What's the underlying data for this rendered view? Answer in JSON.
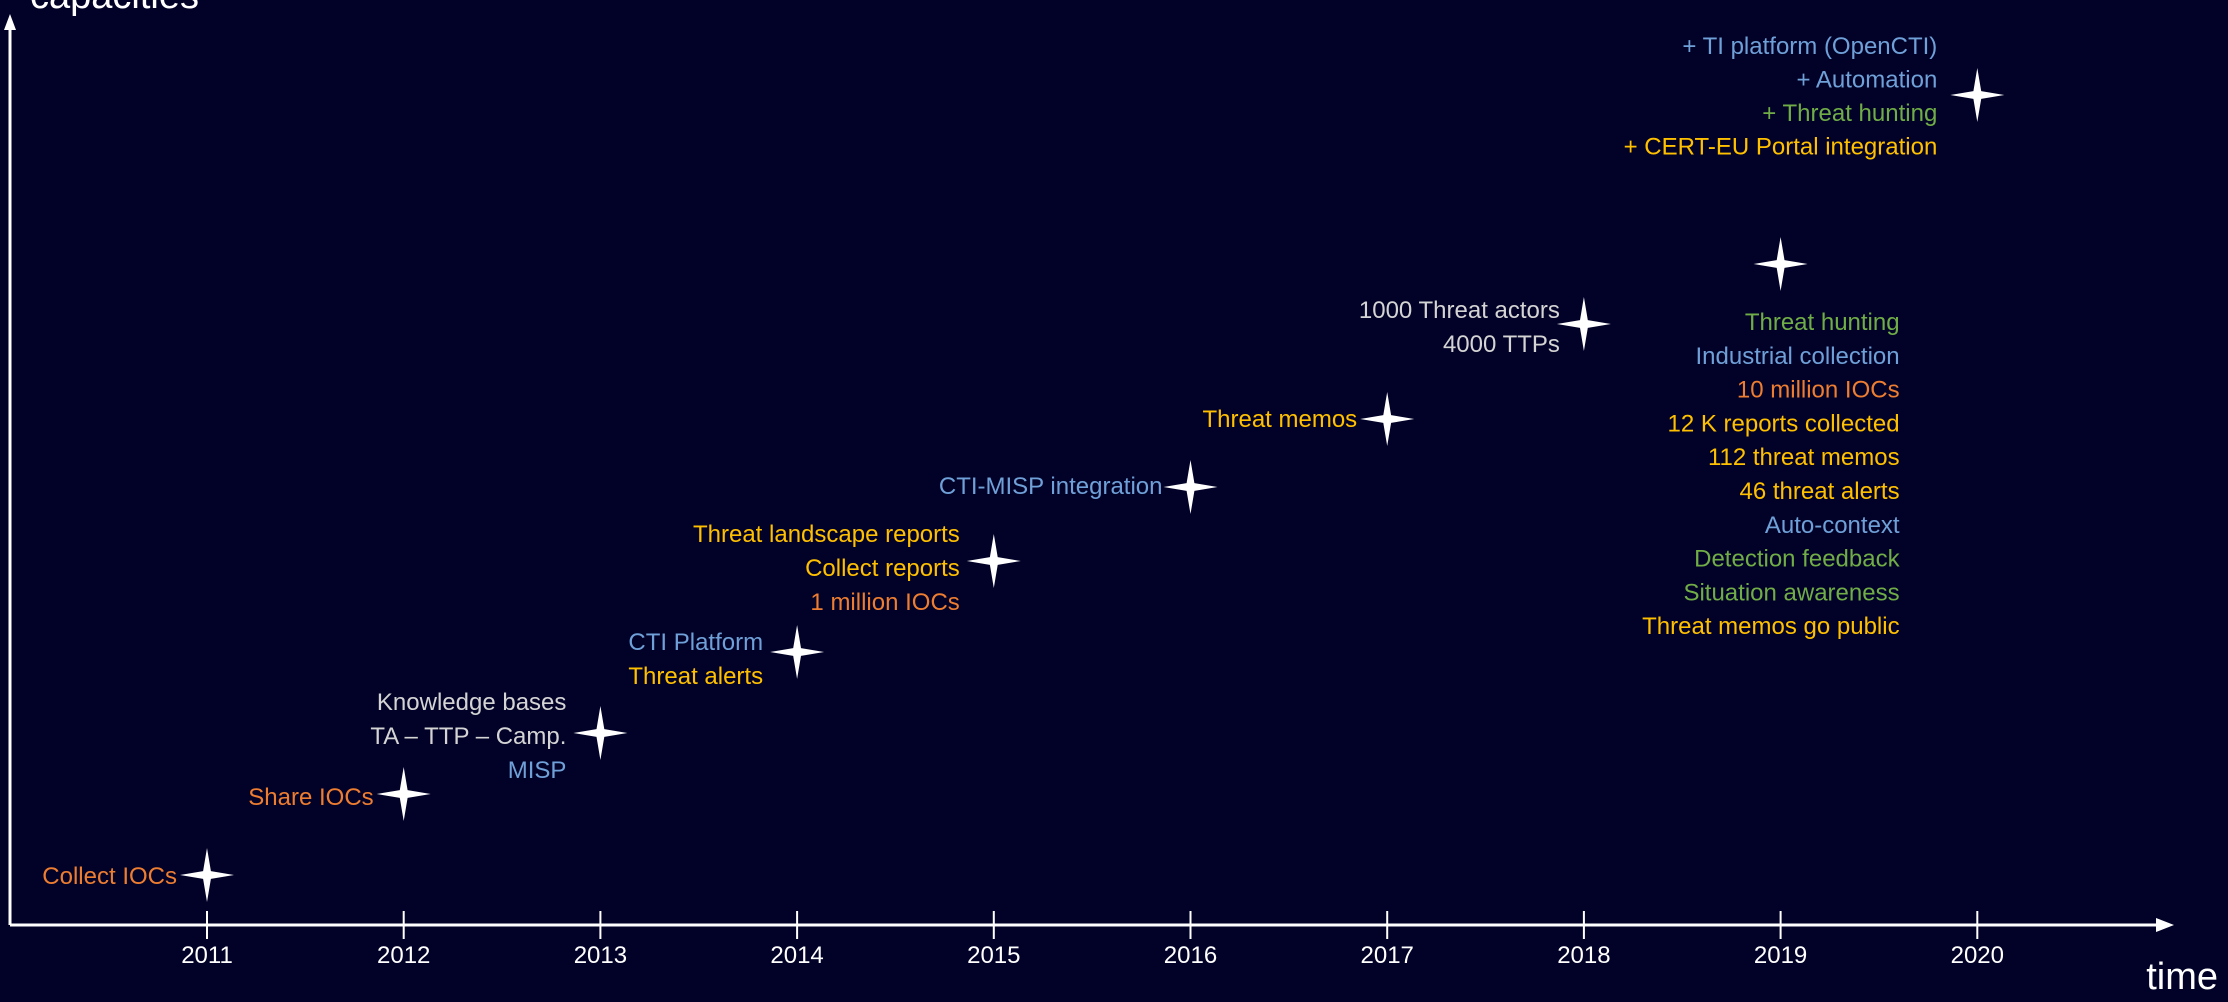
{
  "colors": {
    "background": "#020228",
    "axis": "#ffffff",
    "white": "#ffffff",
    "gray": "#d4d4d4",
    "blue": "#6fa0d8",
    "orange": "#ed7d31",
    "yellow": "#ffc000",
    "green": "#70ad47"
  },
  "axes": {
    "y_label": "capacities",
    "x_label": "time"
  },
  "years": [
    "2011",
    "2012",
    "2013",
    "2014",
    "2015",
    "2016",
    "2017",
    "2018",
    "2019",
    "2020"
  ],
  "milestones": [
    {
      "year": "2011",
      "lines": [
        {
          "text": "Collect IOCs",
          "color": "orange"
        }
      ]
    },
    {
      "year": "2012",
      "lines": [
        {
          "text": "Share IOCs",
          "color": "orange"
        }
      ]
    },
    {
      "year": "2013",
      "lines": [
        {
          "text": "Knowledge bases",
          "color": "gray"
        },
        {
          "text": "TA – TTP – Camp.",
          "color": "gray"
        },
        {
          "text": "MISP",
          "color": "blue"
        }
      ]
    },
    {
      "year": "2014",
      "lines": [
        {
          "text": "CTI Platform",
          "color": "blue"
        },
        {
          "text": "Threat alerts",
          "color": "yellow"
        }
      ]
    },
    {
      "year": "2015",
      "lines": [
        {
          "text": "Threat landscape reports",
          "color": "yellow"
        },
        {
          "text": "Collect reports",
          "color": "yellow"
        },
        {
          "text": "1 million IOCs",
          "color": "orange"
        }
      ]
    },
    {
      "year": "2016",
      "lines": [
        {
          "text": "CTI-MISP integration",
          "color": "blue"
        }
      ]
    },
    {
      "year": "2017",
      "lines": [
        {
          "text": "Threat memos",
          "color": "yellow"
        }
      ]
    },
    {
      "year": "2018",
      "lines": [
        {
          "text": "1000 Threat actors",
          "color": "gray"
        },
        {
          "text": "4000 TTPs",
          "color": "gray"
        }
      ]
    },
    {
      "year": "2019",
      "lines": [
        {
          "text": "Threat hunting",
          "color": "green"
        },
        {
          "text": "Industrial collection",
          "color": "blue"
        },
        {
          "text": "10 million IOCs",
          "color": "orange"
        },
        {
          "text": "12 K reports collected",
          "color": "yellow"
        },
        {
          "text": "112 threat memos",
          "color": "yellow"
        },
        {
          "text": "46 threat alerts",
          "color": "yellow"
        },
        {
          "text": "Auto-context",
          "color": "blue"
        },
        {
          "text": "Detection feedback",
          "color": "green"
        },
        {
          "text": "Situation awareness",
          "color": "green"
        },
        {
          "text": "Threat memos go public",
          "color": "yellow"
        }
      ]
    },
    {
      "year": "2020",
      "lines": [
        {
          "text": "+ TI platform (OpenCTI)",
          "color": "blue"
        },
        {
          "text": "+ Automation",
          "color": "blue"
        },
        {
          "text": "+ Threat hunting",
          "color": "green"
        },
        {
          "text": "+ CERT-EU Portal integration",
          "color": "yellow"
        }
      ]
    }
  ]
}
